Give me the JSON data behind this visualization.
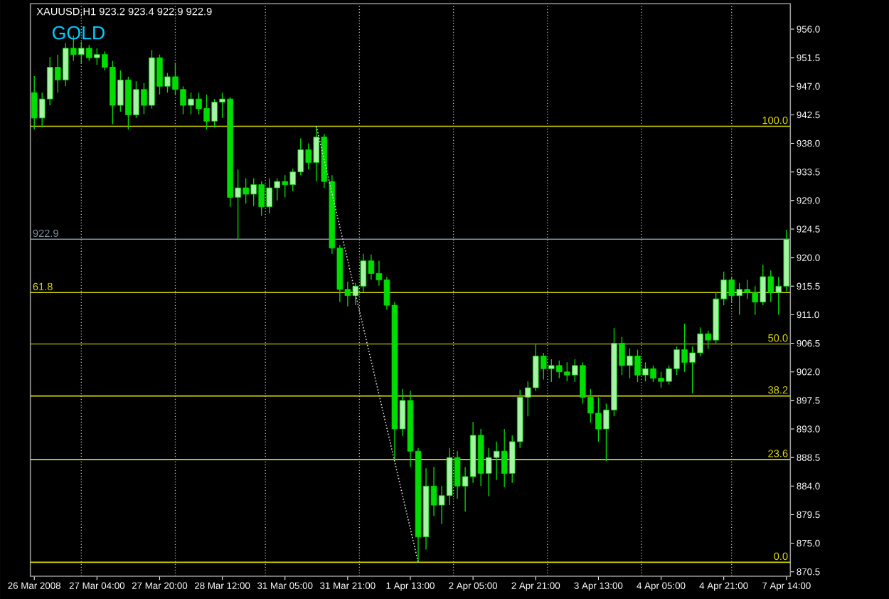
{
  "chart_data": {
    "type": "candlestick",
    "title": "GOLD",
    "annotations": [
      "XAUUSD,H1  923.2 923.4 922.9 922.9",
      {
        "text": "100.0",
        "y": 940.7
      },
      {
        "text": "61.8",
        "y": 914.5
      },
      {
        "text": "50.0",
        "y": 906.4
      },
      {
        "text": "38.2",
        "y": 898.2
      },
      {
        "text": "23.6",
        "y": 888.2
      },
      {
        "text": "0.0",
        "y": 872.0
      }
    ],
    "color": "#00dd00",
    "grid": "x",
    "categories": [
      "26 Mar 2008",
      null,
      null,
      null,
      null,
      null,
      null,
      null,
      "27 Mar 04:00",
      null,
      null,
      null,
      null,
      null,
      null,
      null,
      "27 Mar 20:00",
      null,
      null,
      null,
      null,
      null,
      null,
      null,
      "28 Mar 12:00",
      null,
      null,
      null,
      null,
      null,
      null,
      null,
      "31 Mar 05:00",
      null,
      null,
      null,
      null,
      null,
      null,
      null,
      "31 Mar 21:00",
      null,
      null,
      null,
      null,
      null,
      null,
      null,
      "1 Apr 13:00",
      null,
      null,
      null,
      null,
      null,
      null,
      null,
      "2 Apr 05:00",
      null,
      null,
      null,
      null,
      null,
      null,
      null,
      "2 Apr 21:00",
      null,
      null,
      null,
      null,
      null,
      null,
      null,
      "3 Apr 13:00",
      null,
      null,
      null,
      null,
      null,
      null,
      null,
      "4 Apr 05:00",
      null,
      null,
      null,
      null,
      null,
      null,
      null,
      "4 Apr 21:00",
      null,
      null,
      null,
      null,
      null,
      null,
      null,
      "7 Apr 14:00"
    ],
    "ohlc": [
      [
        946,
        948.6,
        940.2,
        942
      ],
      [
        942,
        946,
        940.5,
        945
      ],
      [
        945,
        951.6,
        944,
        950
      ],
      [
        950,
        952,
        946,
        948
      ],
      [
        948,
        953.8,
        947,
        953
      ],
      [
        953,
        955,
        951,
        952
      ],
      [
        952,
        954,
        950.5,
        953
      ],
      [
        953,
        953.5,
        951,
        951.5
      ],
      [
        951.5,
        953,
        950.4,
        952
      ],
      [
        952,
        952.5,
        949.5,
        950
      ],
      [
        950,
        951,
        941,
        944
      ],
      [
        944,
        949.5,
        943,
        948
      ],
      [
        948,
        948.5,
        940.2,
        942.5
      ],
      [
        942.5,
        947.8,
        942,
        946.5
      ],
      [
        946.5,
        947.5,
        942.6,
        944
      ],
      [
        944,
        952.7,
        943.5,
        951.5
      ],
      [
        951.5,
        952,
        945.7,
        947
      ],
      [
        947,
        949.1,
        946,
        948.5
      ],
      [
        948.5,
        950.7,
        945.7,
        946.5
      ],
      [
        946.5,
        947,
        942.6,
        944
      ],
      [
        944,
        946,
        942.6,
        945
      ],
      [
        945,
        946,
        942.6,
        943.5
      ],
      [
        943.5,
        945.7,
        940.2,
        941.5
      ],
      [
        941.5,
        945,
        940.5,
        944.5
      ],
      [
        944.5,
        946,
        942,
        945
      ],
      [
        945,
        945.3,
        928,
        929.5
      ],
      [
        929.5,
        933.9,
        922.9,
        931
      ],
      [
        931,
        932.5,
        928.5,
        930
      ],
      [
        930,
        932.5,
        928.1,
        931.5
      ],
      [
        931.5,
        932,
        926.6,
        928
      ],
      [
        928,
        932.5,
        927,
        931
      ],
      [
        931,
        932.5,
        929,
        932
      ],
      [
        932,
        933,
        929.5,
        931.5
      ],
      [
        931.5,
        934,
        930.5,
        933.5
      ],
      [
        933.5,
        938.8,
        933,
        937
      ],
      [
        937,
        938,
        933.9,
        935
      ],
      [
        935,
        940.7,
        932,
        939
      ],
      [
        939,
        939.5,
        931,
        932
      ],
      [
        932,
        933,
        920.6,
        921.5
      ],
      [
        921.5,
        922,
        913,
        915
      ],
      [
        915,
        916.2,
        912.3,
        914
      ],
      [
        914,
        916,
        912.5,
        915.5
      ],
      [
        915.5,
        920.6,
        914.5,
        919.5
      ],
      [
        919.5,
        920.5,
        916.5,
        917.5
      ],
      [
        917.5,
        919.5,
        915.6,
        916.5
      ],
      [
        916.5,
        917,
        911.8,
        912.5
      ],
      [
        912.5,
        913,
        888,
        893
      ],
      [
        893,
        899.3,
        891.9,
        897.5
      ],
      [
        897.5,
        899,
        887,
        889.5
      ],
      [
        889.5,
        890,
        872,
        876
      ],
      [
        876,
        886.8,
        874,
        884
      ],
      [
        884,
        887,
        879.3,
        881
      ],
      [
        881,
        884,
        878,
        882.5
      ],
      [
        882.5,
        890,
        881,
        888.5
      ],
      [
        888.5,
        889.5,
        882,
        884
      ],
      [
        884,
        887,
        880,
        885.5
      ],
      [
        885.5,
        894.1,
        884.5,
        892
      ],
      [
        892,
        893,
        884,
        886
      ],
      [
        886,
        890,
        882.4,
        888.5
      ],
      [
        888.5,
        891,
        885,
        889.5
      ],
      [
        889.5,
        893,
        883.8,
        886
      ],
      [
        886,
        892,
        884.5,
        891
      ],
      [
        891,
        899.2,
        890,
        898
      ],
      [
        898,
        900.5,
        895,
        899.5
      ],
      [
        899.5,
        906.3,
        899,
        904.5
      ],
      [
        904.5,
        905,
        900.8,
        902.5
      ],
      [
        902.5,
        904,
        900.4,
        903
      ],
      [
        903,
        903.8,
        901,
        902
      ],
      [
        902,
        903.5,
        900.5,
        901.5
      ],
      [
        901.5,
        904,
        900.4,
        903
      ],
      [
        903,
        903.5,
        897,
        898
      ],
      [
        898,
        899.3,
        894,
        895.5
      ],
      [
        895.5,
        898,
        891,
        893
      ],
      [
        893,
        897,
        887.9,
        896
      ],
      [
        896,
        908.9,
        895,
        906.5
      ],
      [
        906.5,
        907.5,
        901.5,
        903
      ],
      [
        903,
        905.7,
        901,
        904.5
      ],
      [
        904.5,
        905.5,
        900.4,
        901.5
      ],
      [
        901.5,
        903.5,
        900.5,
        902.5
      ],
      [
        902.5,
        903,
        900.4,
        901
      ],
      [
        901,
        902,
        899.5,
        900.5
      ],
      [
        900.5,
        903,
        900,
        902.5
      ],
      [
        902.5,
        906,
        901.5,
        905.5
      ],
      [
        905.5,
        909.6,
        902,
        903.5
      ],
      [
        903.5,
        906,
        898.6,
        905
      ],
      [
        905,
        909,
        904.5,
        908
      ],
      [
        908,
        908.5,
        905.6,
        907
      ],
      [
        907,
        914.5,
        906.5,
        913.5
      ],
      [
        913.5,
        917.8,
        912.5,
        916.5
      ],
      [
        916.5,
        917,
        913,
        914
      ],
      [
        914,
        916,
        911,
        915
      ],
      [
        915,
        916.5,
        913.5,
        914.5
      ],
      [
        914.5,
        915.5,
        911,
        913
      ],
      [
        913,
        918.9,
        912.5,
        917
      ],
      [
        917,
        918,
        913,
        914.5
      ],
      [
        914.5,
        917,
        911,
        915.5
      ],
      [
        915.5,
        924.4,
        914.7,
        922.9
      ]
    ],
    "series": [
      {
        "type": "line",
        "color": "#e0e0e0",
        "line_style": "dotted",
        "values": [
          null,
          null,
          null,
          null,
          null,
          null,
          null,
          null,
          null,
          null,
          null,
          null,
          null,
          null,
          null,
          null,
          null,
          null,
          null,
          null,
          null,
          null,
          null,
          null,
          null,
          null,
          null,
          null,
          null,
          null,
          null,
          null,
          null,
          null,
          null,
          null,
          940.7,
          null,
          null,
          null,
          null,
          null,
          null,
          null,
          null,
          null,
          null,
          null,
          null,
          872.0,
          null,
          null,
          null,
          null,
          null,
          null,
          null,
          null,
          null,
          null,
          null,
          null,
          null,
          null,
          null,
          null,
          null,
          null,
          null,
          null,
          null,
          null,
          null,
          null,
          null,
          null,
          null,
          null,
          null,
          null,
          null,
          null,
          null,
          null,
          null,
          null,
          null,
          null,
          null,
          null,
          null,
          null,
          null,
          null,
          null,
          null,
          null
        ]
      }
    ],
    "ylim": [
      869.8,
      960
    ],
    "yticks": [
      {
        "value": 870.5,
        "label": "870.5"
      },
      {
        "value": 875,
        "label": "875.0"
      },
      {
        "value": 879.5,
        "label": "879.5"
      },
      {
        "value": 884,
        "label": "884.0"
      },
      {
        "value": 888.5,
        "label": "888.5"
      },
      {
        "value": 893,
        "label": "893.0"
      },
      {
        "value": 897.5,
        "label": "897.5"
      },
      {
        "value": 902,
        "label": "902.0"
      },
      {
        "value": 906.5,
        "label": "906.5"
      },
      {
        "value": 911,
        "label": "911.0"
      },
      {
        "value": 915.5,
        "label": "915.5"
      },
      {
        "value": 920,
        "label": "920.0"
      },
      {
        "value": 924.5,
        "label": "924.5"
      },
      {
        "value": 929,
        "label": "929.0"
      },
      {
        "value": 933.5,
        "label": "933.5"
      },
      {
        "value": 938,
        "label": "938.0"
      },
      {
        "value": 942.5,
        "label": "942.5"
      },
      {
        "value": 947,
        "label": "947.0"
      },
      {
        "value": 951.5,
        "label": "951.5"
      },
      {
        "value": 956,
        "label": "956.0"
      }
    ],
    "ref_lines": [
      {
        "axis": "y",
        "value": 940.7,
        "color": "#d8d800"
      },
      {
        "axis": "y",
        "value": 914.5,
        "color": "#d8d800"
      },
      {
        "axis": "y",
        "value": 906.4,
        "color": "#9a9a00"
      },
      {
        "axis": "y",
        "value": 898.2,
        "color": "#d8d800"
      },
      {
        "axis": "y",
        "value": 888.2,
        "color": "#d8d800"
      },
      {
        "axis": "y",
        "value": 872.0,
        "color": "#d8d800"
      },
      {
        "axis": "y",
        "value": 922.9,
        "label": "922.9",
        "color": "#8090a0"
      }
    ]
  }
}
